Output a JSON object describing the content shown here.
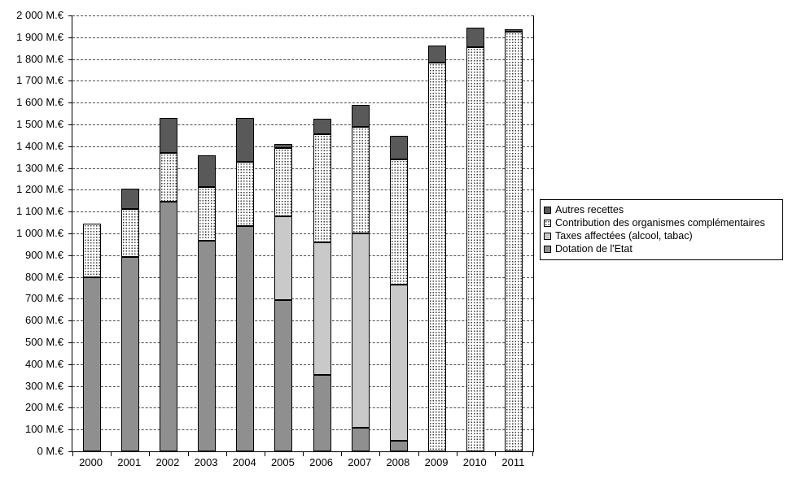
{
  "chart_data": {
    "type": "bar",
    "stacked": true,
    "title": "",
    "unit": "M.€",
    "categories": [
      "2000",
      "2001",
      "2002",
      "2003",
      "2004",
      "2005",
      "2006",
      "2007",
      "2008",
      "2009",
      "2010",
      "2011"
    ],
    "series": [
      {
        "name": "Dotation de l'Etat",
        "fill": "solid",
        "color": "#8f8f8f",
        "values": [
          800,
          890,
          1145,
          965,
          1035,
          695,
          350,
          110,
          50,
          0,
          0,
          0
        ]
      },
      {
        "name": "Taxes affectées (alcool, tabac)",
        "fill": "solid",
        "color": "#c9c9c9",
        "values": [
          0,
          0,
          0,
          0,
          0,
          385,
          610,
          890,
          715,
          0,
          0,
          0
        ]
      },
      {
        "name": "Contribution des organismes complémentaires",
        "fill": "dots",
        "color": "#ffffff",
        "dot_color": "#3d3d3d",
        "values": [
          245,
          220,
          225,
          245,
          295,
          315,
          495,
          490,
          575,
          1785,
          1855,
          1925
        ]
      },
      {
        "name": "Autres recettes",
        "fill": "solid",
        "color": "#595959",
        "values": [
          0,
          95,
          160,
          145,
          200,
          20,
          70,
          100,
          110,
          80,
          90,
          10
        ]
      }
    ],
    "legend": {
      "position": "right",
      "entries": [
        "Autres recettes",
        "Contribution des organismes complémentaires",
        "Taxes affectées (alcool, tabac)",
        "Dotation de l'Etat"
      ]
    },
    "y_axis": {
      "min": 0,
      "max": 2000,
      "tick_step": 100,
      "tick_labels": [
        "0 M.€",
        "100 M.€",
        "200 M.€",
        "300 M.€",
        "400 M.€",
        "500 M.€",
        "600 M.€",
        "700 M.€",
        "800 M.€",
        "900 M.€",
        "1 000 M.€",
        "1 100 M.€",
        "1 200 M.€",
        "1 300 M.€",
        "1 400 M.€",
        "1 500 M.€",
        "1 600 M.€",
        "1 700 M.€",
        "1 800 M.€",
        "1 900 M.€",
        "2 000 M.€"
      ]
    },
    "grid": {
      "horizontal": "dashed"
    }
  }
}
